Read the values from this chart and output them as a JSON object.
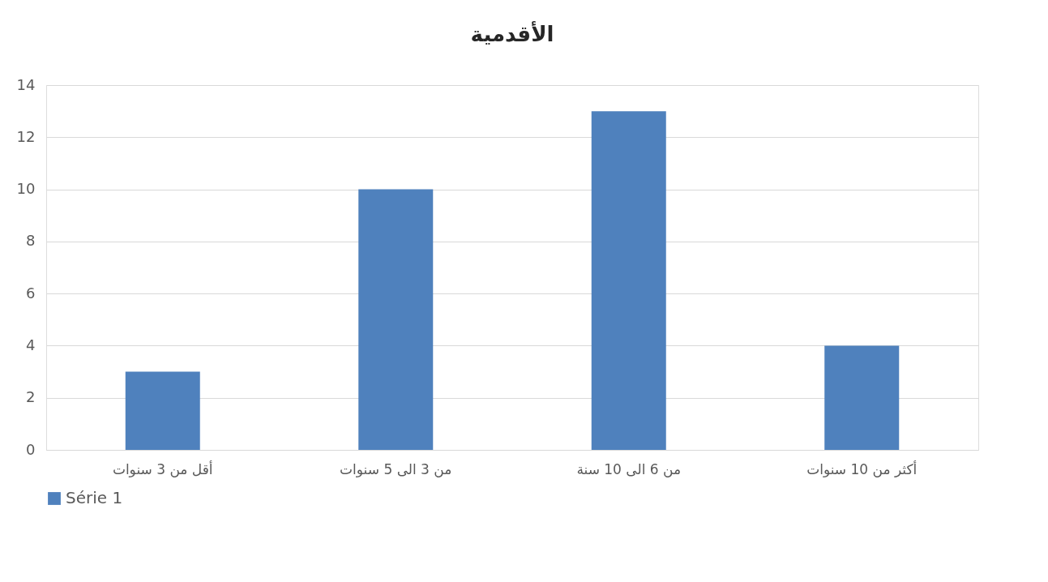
{
  "chart_data": {
    "type": "bar",
    "title": "الأقدمية",
    "categories": [
      "أقل من 3 سنوات",
      "من 3 الى 5 سنوات",
      "من 6 الى 10 سنة",
      "أكثر من 10 سنوات"
    ],
    "series": [
      {
        "name": "Série 1",
        "color": "#4f81bd",
        "values": [
          3,
          10,
          13,
          4
        ]
      }
    ],
    "ylim": [
      0,
      14
    ],
    "yticks": [
      0,
      2,
      4,
      6,
      8,
      10,
      12,
      14
    ],
    "grid": "y",
    "legend": "bottom"
  }
}
